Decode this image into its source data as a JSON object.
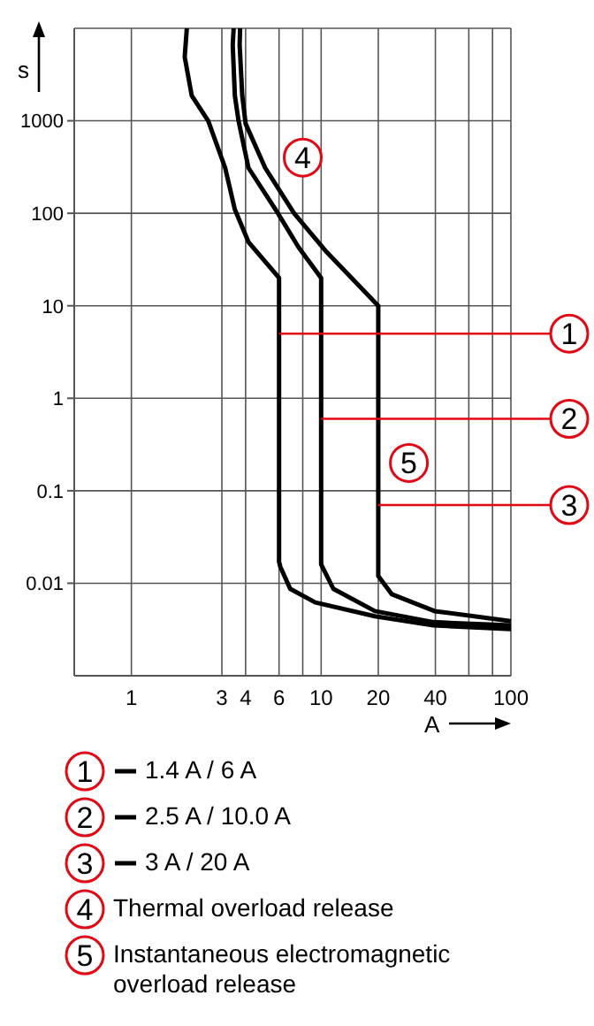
{
  "chart_data": {
    "type": "line",
    "xlabel": "A",
    "ylabel": "s",
    "log": "xy",
    "grid": true,
    "legend": "bottom",
    "marker": "none",
    "line_style": "solid",
    "xlim": [
      0.5,
      100
    ],
    "xticks": [
      1,
      3,
      4,
      6,
      {
        "value": 8,
        "label": null
      },
      10,
      20,
      40,
      {
        "value": 60,
        "label": null
      },
      {
        "value": 80,
        "label": null
      },
      100
    ],
    "ylim": [
      0.001,
      10000
    ],
    "yticks": [
      0.01,
      0.1,
      1,
      10,
      100,
      1000
    ],
    "series": [
      {
        "name": "1.4 A / 6 A",
        "color": "#000000",
        "x": [
          1.96,
          1.91,
          2.08,
          2.54,
          3.12,
          3.51,
          4.14,
          6,
          6,
          6.1,
          6.87,
          9.32,
          19.2,
          39,
          100
        ],
        "values": [
          10000,
          4900,
          1870,
          1000,
          310,
          110,
          49,
          20,
          0.017,
          0.015,
          0.0087,
          0.0062,
          0.0044,
          0.0035,
          0.0032
        ]
      },
      {
        "name": "2.5 A / 10.0 A",
        "color": "#000000",
        "x": [
          3.46,
          3.42,
          3.51,
          3.67,
          4.14,
          5.8,
          7.6,
          10,
          10,
          11.6,
          19.2,
          39,
          100
        ],
        "values": [
          10000,
          6600,
          1870,
          1000,
          310,
          107,
          43,
          20,
          0.016,
          0.0087,
          0.005,
          0.0038,
          0.0035
        ]
      },
      {
        "name": "3 A / 20 A",
        "color": "#000000",
        "x": [
          3.74,
          3.72,
          3.84,
          4,
          5.07,
          7.2,
          10.7,
          20,
          20,
          23.6,
          39.6,
          100
        ],
        "values": [
          10000,
          6600,
          1870,
          930,
          310,
          100,
          38,
          10,
          0.012,
          0.0076,
          0.005,
          0.0039
        ]
      }
    ],
    "annotations": [
      {
        "text": "1",
        "x": 6,
        "y": 5
      },
      {
        "text": "2",
        "x": 10,
        "y": 0.6
      },
      {
        "text": "3",
        "x": 20,
        "y": 0.07
      },
      {
        "text": "4",
        "x": 8,
        "y": 400
      },
      {
        "text": "5",
        "x": 29,
        "y": 0.2
      },
      "Thermal overload release",
      "Instantaneous electromagnetic overload release"
    ]
  }
}
